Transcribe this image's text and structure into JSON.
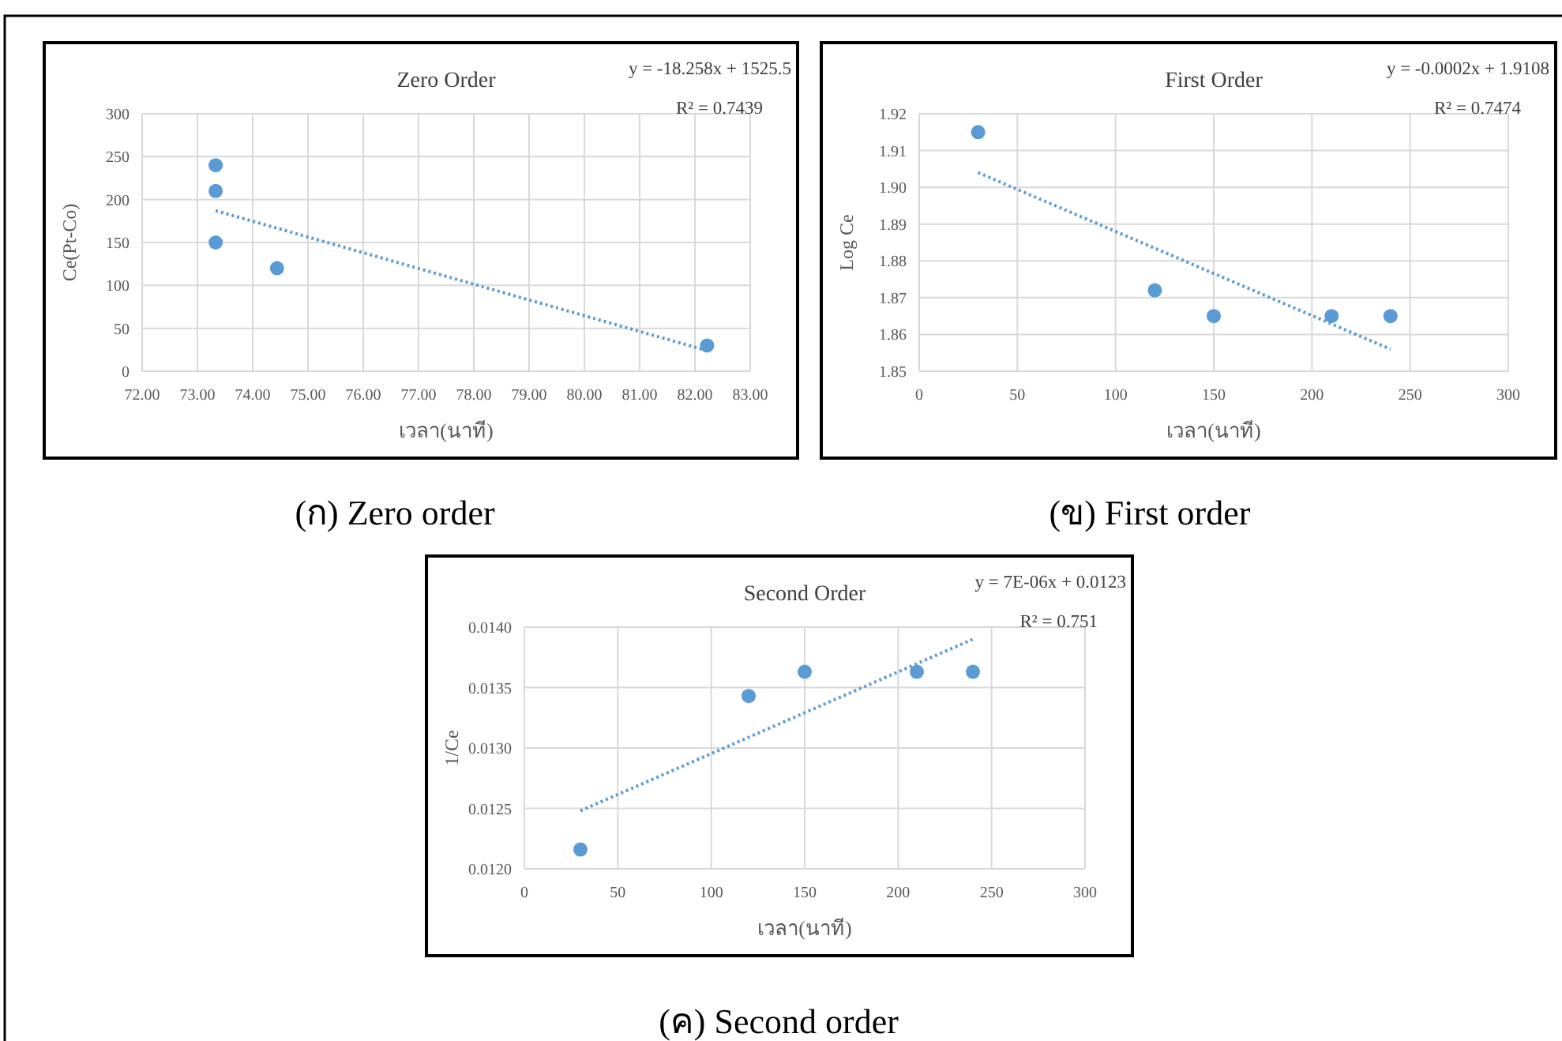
{
  "chart_data": [
    {
      "type": "scatter",
      "title": "Zero Order",
      "xlabel": "เวลา(นาที)",
      "ylabel": "Ce(Pt-Co)",
      "grid": true,
      "x": [
        73.33,
        73.33,
        73.33,
        74.44,
        82.22
      ],
      "series": [
        {
          "color": "#5b9bd5",
          "marker": "circle",
          "values": [
            240,
            210,
            150,
            120,
            30
          ]
        },
        {
          "type": "line",
          "x": [
            73.33,
            82.22
          ],
          "values": [
            187,
            24
          ],
          "color": "#5b9bd5",
          "line_style": "dotted",
          "marker": "none"
        }
      ],
      "xlim": [
        72,
        83
      ],
      "xticks": [
        {
          "value": 72,
          "label": "72.00"
        },
        {
          "value": 73,
          "label": "73.00"
        },
        {
          "value": 74,
          "label": "74.00"
        },
        {
          "value": 75,
          "label": "75.00"
        },
        {
          "value": 76,
          "label": "76.00"
        },
        {
          "value": 77,
          "label": "77.00"
        },
        {
          "value": 78,
          "label": "78.00"
        },
        {
          "value": 79,
          "label": "79.00"
        },
        {
          "value": 80,
          "label": "80.00"
        },
        {
          "value": 81,
          "label": "81.00"
        },
        {
          "value": 82,
          "label": "82.00"
        },
        {
          "value": 83,
          "label": "83.00"
        }
      ],
      "ylim": [
        0,
        300
      ],
      "yticks": [
        0,
        50,
        100,
        150,
        200,
        250,
        300
      ],
      "annotations": [
        "y = -18.258x + 1525.5",
        "R² = 0.7439",
        "(ก) Zero order"
      ]
    },
    {
      "type": "scatter",
      "title": "First Order",
      "xlabel": "เวลา(นาที)",
      "ylabel": "Log Ce",
      "grid": true,
      "x": [
        30,
        120,
        150,
        210,
        240
      ],
      "series": [
        {
          "color": "#5b9bd5",
          "marker": "circle",
          "values": [
            1.915,
            1.872,
            1.865,
            1.865,
            1.865
          ]
        },
        {
          "type": "line",
          "x": [
            30,
            240
          ],
          "values": [
            1.904,
            1.856
          ],
          "color": "#5b9bd5",
          "line_style": "dotted",
          "marker": "none"
        }
      ],
      "xlim": [
        0,
        300
      ],
      "xticks": [
        0,
        50,
        100,
        150,
        200,
        250,
        300
      ],
      "ylim": [
        1.85,
        1.92
      ],
      "yticks": [
        {
          "value": 1.85,
          "label": "1.85"
        },
        {
          "value": 1.86,
          "label": "1.86"
        },
        {
          "value": 1.87,
          "label": "1.87"
        },
        {
          "value": 1.88,
          "label": "1.88"
        },
        {
          "value": 1.89,
          "label": "1.89"
        },
        {
          "value": 1.9,
          "label": "1.90"
        },
        {
          "value": 1.91,
          "label": "1.91"
        },
        {
          "value": 1.92,
          "label": "1.92"
        }
      ],
      "annotations": [
        "y = -0.0002x + 1.9108",
        "R² = 0.7474",
        "(ข) First order"
      ]
    },
    {
      "type": "scatter",
      "title": "Second Order",
      "xlabel": "เวลา(นาที)",
      "ylabel": "1/Ce",
      "grid": true,
      "x": [
        30,
        120,
        150,
        210,
        240
      ],
      "series": [
        {
          "color": "#5b9bd5",
          "marker": "circle",
          "values": [
            0.01216,
            0.01343,
            0.01363,
            0.01363,
            0.01363
          ]
        },
        {
          "type": "line",
          "x": [
            30,
            240
          ],
          "values": [
            0.01248,
            0.0139
          ],
          "color": "#5b9bd5",
          "line_style": "dotted",
          "marker": "none"
        }
      ],
      "xlim": [
        0,
        300
      ],
      "xticks": [
        0,
        50,
        100,
        150,
        200,
        250,
        300
      ],
      "ylim": [
        0.012,
        0.014
      ],
      "yticks": [
        {
          "value": 0.012,
          "label": "0.0120"
        },
        {
          "value": 0.0125,
          "label": "0.0125"
        },
        {
          "value": 0.013,
          "label": "0.0130"
        },
        {
          "value": 0.0135,
          "label": "0.0135"
        },
        {
          "value": 0.014,
          "label": "0.0140"
        }
      ],
      "annotations": [
        "y = 7E-06x + 0.0123",
        "R² = 0.751",
        "(ค) Second order"
      ]
    }
  ]
}
